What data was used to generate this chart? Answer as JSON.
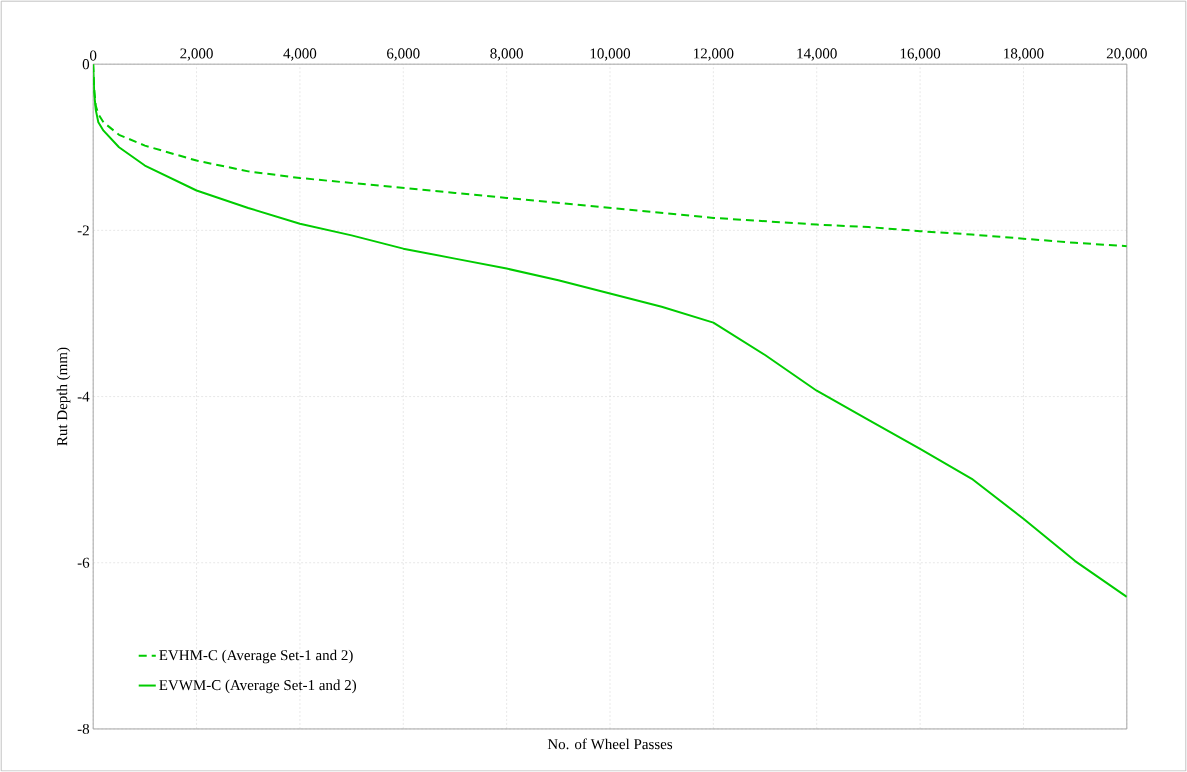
{
  "chart_data": {
    "type": "line",
    "xlabel": "No. of Wheel Passes",
    "ylabel": "Rut Depth (mm)",
    "xlim": [
      0,
      20000
    ],
    "ylim": [
      -8,
      0
    ],
    "xticks": [
      0,
      {
        "value": 2000,
        "label": "2,000"
      },
      {
        "value": 4000,
        "label": "4,000"
      },
      {
        "value": 6000,
        "label": "6,000"
      },
      {
        "value": 8000,
        "label": "8,000"
      },
      {
        "value": 10000,
        "label": "10,000"
      },
      {
        "value": 12000,
        "label": "12,000"
      },
      {
        "value": 14000,
        "label": "14,000"
      },
      {
        "value": 16000,
        "label": "16,000"
      },
      {
        "value": 18000,
        "label": "18,000"
      },
      {
        "value": 20000,
        "label": "20,000"
      }
    ],
    "yticks": [
      0,
      -2,
      -4,
      -6,
      -8
    ],
    "grid": true,
    "legend": "bottom left",
    "marker": "none",
    "series": [
      {
        "name": "EVHM-C (Average Set-1 and 2)",
        "color": "#00cc00",
        "line_style": "dashed",
        "x": [
          0,
          20,
          50,
          100,
          200,
          500,
          1000,
          2000,
          3000,
          4000,
          5000,
          6000,
          7000,
          8000,
          9000,
          10000,
          11000,
          12000,
          13000,
          14000,
          15000,
          16000,
          17000,
          18000,
          19000,
          20000
        ],
        "values": [
          0,
          -0.3,
          -0.5,
          -0.6,
          -0.7,
          -0.85,
          -0.98,
          -1.16,
          -1.29,
          -1.37,
          -1.43,
          -1.49,
          -1.55,
          -1.61,
          -1.67,
          -1.73,
          -1.79,
          -1.85,
          -1.89,
          -1.93,
          -1.96,
          -2.01,
          -2.05,
          -2.1,
          -2.15,
          -2.19
        ]
      },
      {
        "name": "EVWM-C (Average Set-1 and 2)",
        "color": "#00cc00",
        "line_style": "solid",
        "x": [
          0,
          20,
          50,
          100,
          200,
          500,
          1000,
          2000,
          3000,
          4000,
          5000,
          6000,
          7000,
          8000,
          9000,
          10000,
          11000,
          12000,
          13000,
          14000,
          15000,
          16000,
          17000,
          18000,
          19000,
          20000
        ],
        "values": [
          0,
          -0.35,
          -0.55,
          -0.7,
          -0.8,
          -1.0,
          -1.22,
          -1.52,
          -1.73,
          -1.92,
          -2.06,
          -2.22,
          -2.34,
          -2.46,
          -2.6,
          -2.76,
          -2.92,
          -3.11,
          -3.5,
          -3.93,
          -4.28,
          -4.63,
          -4.99,
          -5.47,
          -5.98,
          -6.41
        ]
      }
    ]
  }
}
